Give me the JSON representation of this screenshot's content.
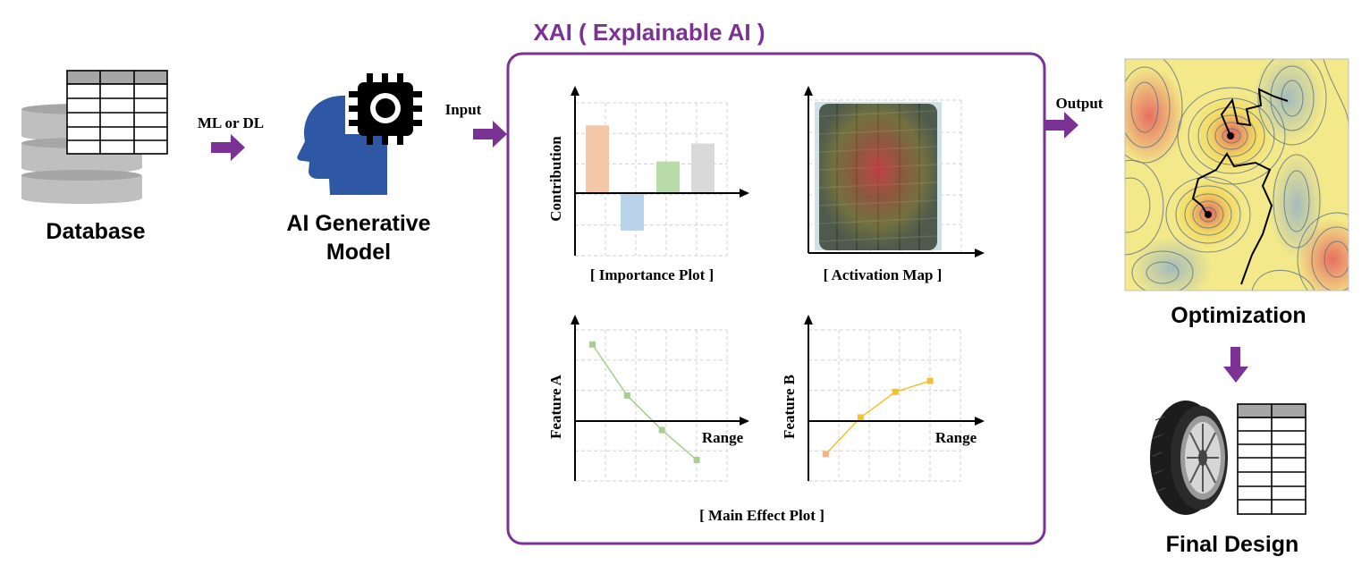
{
  "diagram": {
    "nodes": {
      "database": {
        "label": "Database"
      },
      "ai_model": {
        "label_line1": "AI Generative",
        "label_line2": "Model"
      },
      "optimization": {
        "label": "Optimization"
      },
      "final_design": {
        "label": "Final Design"
      }
    },
    "xai_panel": {
      "title": "XAI ( Explainable AI )",
      "importance_plot": {
        "caption": "[ Importance Plot ]",
        "ylabel": "Contribution",
        "bars": [
          {
            "value": 3.0,
            "color": "#f4c7a8"
          },
          {
            "value": -1.5,
            "color": "#b8d3ea"
          },
          {
            "value": 1.4,
            "color": "#b9dba9"
          },
          {
            "value": 2.2,
            "color": "#d9d9d9"
          }
        ],
        "ylim": [
          -2.5,
          4.0
        ]
      },
      "activation_map": {
        "caption": "[ Activation Map ]"
      },
      "main_effect_plot": {
        "caption": "[ Main Effect Plot ]",
        "feature_a": {
          "ylabel": "Feature A",
          "xlabel": "Range",
          "color": "#a6cf8f",
          "x": [
            1,
            2,
            3,
            4
          ],
          "y": [
            2.1,
            0.7,
            -0.3,
            -1.3
          ],
          "ylim": [
            -2.0,
            2.5
          ],
          "xlim": [
            0.5,
            5.0
          ]
        },
        "feature_b": {
          "ylabel": "Feature B",
          "xlabel": "Range",
          "colors": [
            "#f2b48a",
            "#f2c12e",
            "#f2c12e",
            "#f2c12e"
          ],
          "x": [
            1,
            2,
            3,
            4
          ],
          "y": [
            -1.1,
            0.1,
            0.8,
            1.1
          ],
          "ylim": [
            -2.0,
            2.5
          ],
          "xlim": [
            0.5,
            5.0
          ]
        }
      }
    },
    "edges": [
      {
        "label": "ML or DL"
      },
      {
        "label": "Input"
      },
      {
        "label": "Output"
      },
      {
        "label": ""
      }
    ],
    "colors": {
      "accent_purple": "#7b3294",
      "head_blue": "#2f58a4",
      "db_gray": "#bfbfbf"
    }
  }
}
